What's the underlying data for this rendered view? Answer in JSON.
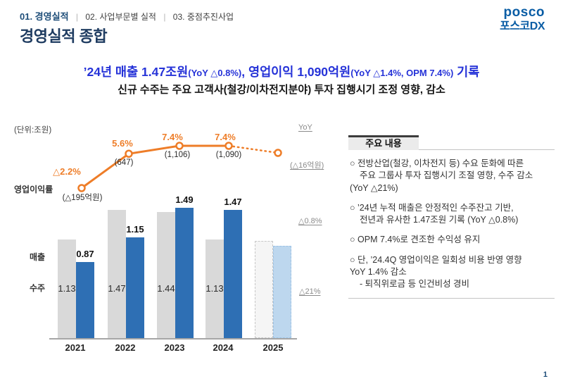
{
  "nav": {
    "item1": "01. 경영실적",
    "pipe": "|",
    "item2": "02. 사업부문별 실적",
    "item3": "03. 중점추진사업"
  },
  "logo": {
    "line1": "posco",
    "line2": "포스코DX"
  },
  "page_title": "경영실적 종합",
  "headline": {
    "segments": [
      {
        "text": "’24년 매출 1.47조원",
        "em": true
      },
      {
        "text": "(YoY △0.8%)",
        "em": false
      },
      {
        "text": ", 영업이익 1,090억원",
        "em": true
      },
      {
        "text": "(YoY △1.4%, OPM 7.4%)",
        "em": false
      },
      {
        "text": " 기록",
        "em": true
      }
    ],
    "line2": "신규 수주는 주요 고객사(철강/이차전지분야) 투자 집행시기 조정 영향, 감소"
  },
  "chart_data": {
    "type": "bar+line",
    "unit_label": "(단위:조원)",
    "categories": [
      "2021",
      "2022",
      "2023",
      "2024",
      "2025"
    ],
    "bar_series": [
      {
        "name": "수주",
        "color": "#d9d9d9",
        "values": [
          1.13,
          1.47,
          1.44,
          1.13,
          null
        ]
      },
      {
        "name": "매출",
        "color": "#2e6fb4",
        "values": [
          0.87,
          1.15,
          1.49,
          1.47,
          null
        ]
      }
    ],
    "line_series": {
      "name": "영업이익률",
      "color": "#ee7d28",
      "pct_values": [
        -2.2,
        5.6,
        7.4,
        7.4,
        null
      ],
      "pct_labels": [
        "△2.2%",
        "5.6%",
        "7.4%",
        "7.4%",
        ""
      ],
      "amount_labels": [
        "(△195억원)",
        "(647)",
        "(1,106)",
        "(1,090)",
        ""
      ]
    },
    "forecast_2025": {
      "orders_est": 1.11,
      "revenue_est": 1.06,
      "opm_pct_est": 5.8,
      "labels_shown": false
    },
    "yoy_annotations": {
      "header": "YoY",
      "operating_profit": "(△16억원)",
      "revenue": "△0.8%",
      "orders": "△21%"
    },
    "axis_labels": {
      "line": "영업이익률",
      "revenue": "매출",
      "orders": "수주"
    },
    "ylim": [
      0,
      1.6
    ],
    "grid": false,
    "legend": "none"
  },
  "panel": {
    "title": "주요 내용",
    "bullets": [
      {
        "lines": [
          {
            "text": "○ 전방산업(철강, 이차전지 등) 수요 둔화에 따른",
            "indent": 0
          },
          {
            "text": "주요 그룹사 투자 집행시기 조절 영향, 수주 감소",
            "indent": 1
          },
          {
            "text": "(YoY △21%)",
            "indent": 0
          }
        ]
      },
      {
        "lines": [
          {
            "text": "○ ’24년 누적 매출은 안정적인 수주잔고 기반,",
            "indent": 0
          },
          {
            "text": "전년과 유사한 1.47조원 기록 (YoY △0.8%)",
            "indent": 1
          }
        ]
      },
      {
        "lines": [
          {
            "text": "○ OPM 7.4%로 견조한 수익성 유지",
            "indent": 0
          }
        ]
      },
      {
        "lines": [
          {
            "text": "○ 단, ’24.4Q 영업이익은 일회성 비용 반영 영향",
            "indent": 0
          },
          {
            "text": "YoY 1.4% 감소",
            "indent": 0
          },
          {
            "text": "- 퇴직위로금 등 인건비성 경비",
            "indent": 1
          }
        ]
      }
    ]
  },
  "page_number": "1"
}
